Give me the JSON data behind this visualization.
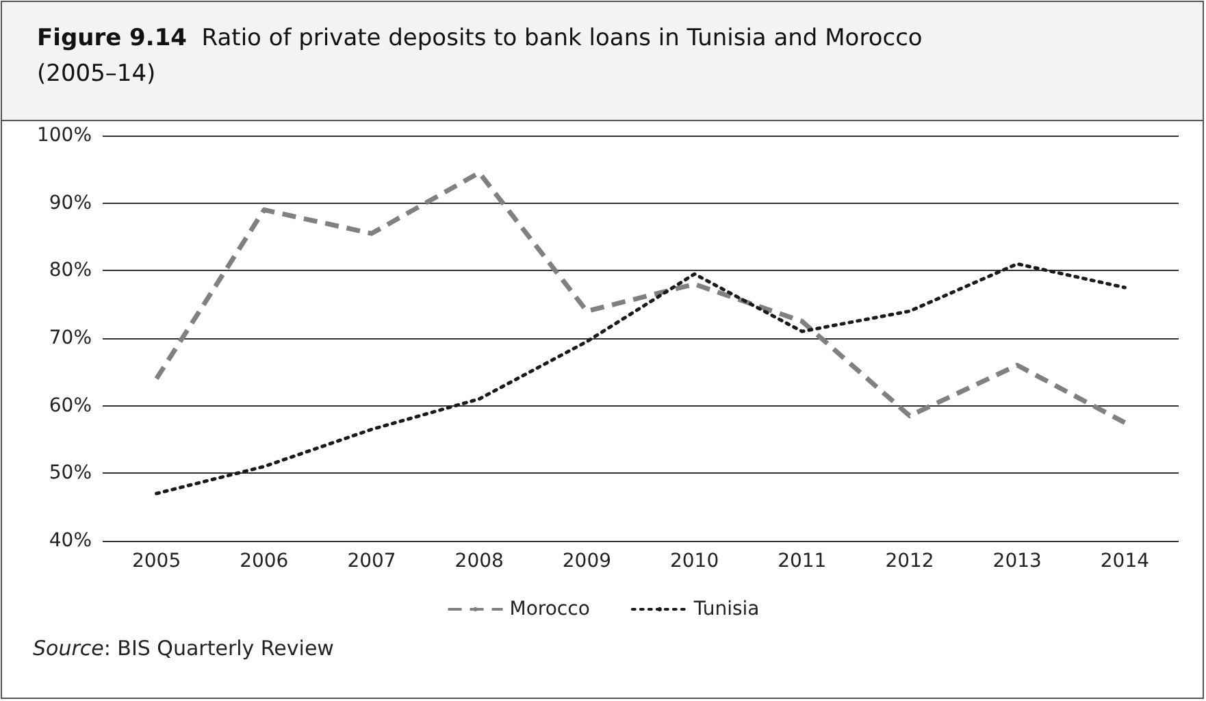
{
  "chart_data": {
    "type": "line",
    "title": "Figure 9.14  Ratio of private deposits to bank loans in Tunisia and Morocco (2005–14)",
    "categories": [
      "2005",
      "2006",
      "2007",
      "2008",
      "2009",
      "2010",
      "2011",
      "2012",
      "2013",
      "2014"
    ],
    "series": [
      {
        "name": "Morocco",
        "color": "#808080",
        "line_style": "dashed",
        "values": [
          64,
          89,
          85.5,
          94.5,
          74,
          78,
          72.5,
          58.5,
          66,
          57.5
        ]
      },
      {
        "name": "Tunisia",
        "color": "#1a1a1a",
        "line_style": "dotted",
        "values": [
          47,
          51,
          56.5,
          61,
          69.5,
          79.5,
          71,
          74,
          81,
          77.5
        ]
      }
    ],
    "ylim": [
      40,
      100
    ],
    "yticks": [
      {
        "value": 40,
        "label": "40%"
      },
      {
        "value": 50,
        "label": "50%"
      },
      {
        "value": 60,
        "label": "60%"
      },
      {
        "value": 70,
        "label": "70%"
      },
      {
        "value": 80,
        "label": "80%"
      },
      {
        "value": 90,
        "label": "90%"
      },
      {
        "value": 100,
        "label": "100%"
      }
    ],
    "grid": "y",
    "legend": "bottom",
    "marker": "none",
    "annotations": [
      "Source: BIS Quarterly Review"
    ]
  }
}
